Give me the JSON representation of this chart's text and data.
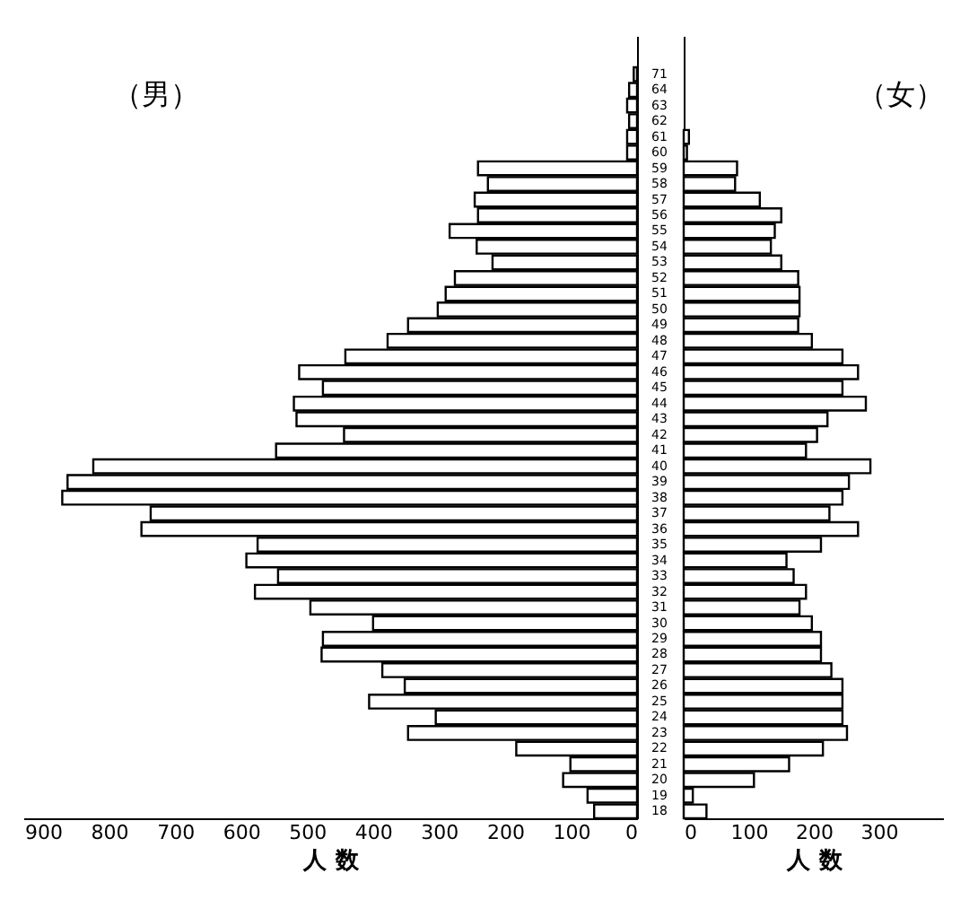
{
  "chart_data": [
    {
      "type": "bar",
      "orientation": "horizontal",
      "title": "（男）",
      "xlabel": "人 数",
      "color": "#ffffff",
      "categories": [
        "71",
        "64",
        "63",
        "62",
        "61",
        "60",
        "59",
        "58",
        "57",
        "56",
        "55",
        "54",
        "53",
        "52",
        "51",
        "50",
        "49",
        "48",
        "47",
        "46",
        "45",
        "44",
        "43",
        "42",
        "41",
        "40",
        "39",
        "38",
        "37",
        "36",
        "35",
        "34",
        "33",
        "32",
        "31",
        "30",
        "29",
        "28",
        "27",
        "26",
        "25",
        "24",
        "23",
        "22",
        "21",
        "20",
        "19",
        "18"
      ],
      "values": [
        5,
        12,
        15,
        12,
        15,
        15,
        241,
        226,
        246,
        241,
        284,
        243,
        219,
        276,
        290,
        302,
        347,
        378,
        442,
        512,
        476,
        520,
        516,
        444,
        547,
        824,
        863,
        871,
        737,
        751,
        575,
        592,
        544,
        579,
        495,
        400,
        476,
        478,
        386,
        352,
        406,
        305,
        347,
        183,
        101,
        112,
        75,
        65
      ],
      "xlim": [
        930,
        0
      ],
      "xticks": [
        900,
        800,
        700,
        600,
        500,
        400,
        300,
        200,
        100,
        0
      ]
    },
    {
      "type": "bar",
      "orientation": "horizontal",
      "title": "（女）",
      "xlabel": "人 数",
      "color": "#ffffff",
      "tick_labels": "x",
      "categories": [
        "71",
        "64",
        "63",
        "62",
        "61",
        "60",
        "59",
        "58",
        "57",
        "56",
        "55",
        "54",
        "53",
        "52",
        "51",
        "50",
        "49",
        "48",
        "47",
        "46",
        "45",
        "44",
        "43",
        "42",
        "41",
        "40",
        "39",
        "38",
        "37",
        "36",
        "35",
        "34",
        "33",
        "32",
        "31",
        "30",
        "29",
        "28",
        "27",
        "26",
        "25",
        "24",
        "23",
        "22",
        "21",
        "20",
        "19",
        "18"
      ],
      "values": [
        null,
        null,
        null,
        null,
        8,
        5,
        82,
        79,
        117,
        150,
        140,
        134,
        150,
        176,
        178,
        178,
        176,
        197,
        244,
        268,
        244,
        280,
        221,
        205,
        188,
        287,
        254,
        244,
        224,
        268,
        211,
        158,
        169,
        188,
        178,
        197,
        211,
        211,
        227,
        244,
        244,
        244,
        251,
        214,
        162,
        108,
        14,
        35
      ],
      "xlim": [
        0,
        400
      ],
      "xticks": [
        0,
        100,
        200,
        300
      ]
    }
  ]
}
